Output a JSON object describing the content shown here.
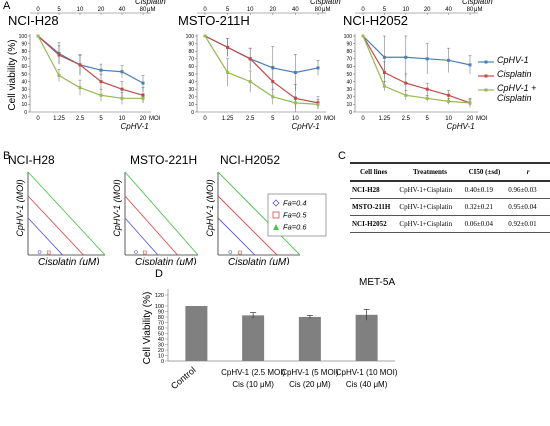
{
  "panelA": {
    "letter": "A",
    "top_ticks": [
      "0",
      "5",
      "10",
      "20",
      "40",
      "80"
    ],
    "top_unit": "μM",
    "top_label": "Cisplatin",
    "bottom_ticks": [
      "0",
      "1.25",
      "2.5",
      "5",
      "10",
      "20"
    ],
    "bottom_unit": "MOI",
    "bottom_label": "CpHV-1",
    "ylabel": "Cell viability (%)",
    "yticks": [
      "0",
      "10",
      "20",
      "30",
      "40",
      "50",
      "60",
      "70",
      "80",
      "90",
      "100"
    ],
    "legend": [
      "CpHV-1",
      "Cisplatin",
      "CpHV-1 + Cisplatin"
    ]
  },
  "panelB": {
    "letter": "B",
    "titles": [
      "NCI-H28",
      "MSTO-221H",
      "NCI-H2052"
    ],
    "ylabel": "CpHV-1 (MOI)",
    "xlabel": "Cisplatin (μM)",
    "legend": [
      "Fa=0.4",
      "Fa=0.5",
      "Fa=0.6"
    ]
  },
  "panelC": {
    "letter": "C",
    "headers": [
      "Cell lines",
      "Treatments",
      "CI50 (±sd)",
      "r"
    ],
    "rows": [
      [
        "NCI-H28",
        "CpHV-1+Cisplatin",
        "0.40±0.19",
        "0.96±0.03"
      ],
      [
        "MSTO-211H",
        "CpHV-1+Cisplatin",
        "0.32±0.21",
        "0.95±0.04"
      ],
      [
        "NCI-H2052",
        "CpHV-1+Cisplatin",
        "0.06±0.04",
        "0.92±0.01"
      ]
    ]
  },
  "panelD": {
    "letter": "D",
    "cat_lines": [
      [
        "Control"
      ],
      [
        "CpHV-1 (2.5 MOI)",
        "Cis (10 μM)"
      ],
      [
        "CpHV-1 (5 MOI)",
        "Cis (20 μM)"
      ],
      [
        "CpHV-1 (10 MOI)",
        "Cis (40 μM)"
      ]
    ]
  },
  "chart_data": [
    {
      "type": "line",
      "title": "NCI-H28",
      "x": [
        "0",
        "1.25",
        "2.5",
        "5",
        "10",
        "20"
      ],
      "ylim": [
        0,
        100
      ],
      "series": [
        {
          "name": "CpHV-1",
          "color": "#4a7ebb",
          "values": [
            100,
            77,
            62,
            55,
            53,
            38
          ],
          "err": [
            0,
            14,
            12,
            8,
            8,
            10
          ]
        },
        {
          "name": "Cisplatin",
          "color": "#be4b48",
          "values": [
            100,
            75,
            62,
            40,
            30,
            22
          ],
          "err": [
            0,
            12,
            14,
            10,
            10,
            10
          ]
        },
        {
          "name": "CpHV-1 + Cisplatin",
          "color": "#98b954",
          "values": [
            100,
            48,
            32,
            22,
            18,
            18
          ],
          "err": [
            0,
            8,
            10,
            8,
            8,
            6
          ]
        }
      ]
    },
    {
      "type": "line",
      "title": "MSTO-211H",
      "x": [
        "0",
        "1.25",
        "2.5",
        "5",
        "10",
        "20"
      ],
      "ylim": [
        0,
        100
      ],
      "series": [
        {
          "name": "CpHV-1",
          "color": "#4a7ebb",
          "values": [
            100,
            85,
            70,
            58,
            52,
            58
          ],
          "err": [
            0,
            12,
            14,
            28,
            24,
            10
          ]
        },
        {
          "name": "Cisplatin",
          "color": "#be4b48",
          "values": [
            100,
            85,
            70,
            40,
            18,
            12
          ],
          "err": [
            0,
            12,
            14,
            20,
            18,
            8
          ]
        },
        {
          "name": "CpHV-1 + Cisplatin",
          "color": "#98b954",
          "values": [
            100,
            52,
            40,
            20,
            12,
            10
          ],
          "err": [
            0,
            18,
            14,
            10,
            8,
            6
          ]
        }
      ]
    },
    {
      "type": "line",
      "title": "NCI-H2052",
      "x": [
        "0",
        "1.25",
        "2.5",
        "5",
        "10",
        "20"
      ],
      "ylim": [
        0,
        100
      ],
      "series": [
        {
          "name": "CpHV-1",
          "color": "#4a7ebb",
          "values": [
            100,
            72,
            72,
            70,
            68,
            62
          ],
          "err": [
            0,
            28,
            28,
            20,
            16,
            12
          ]
        },
        {
          "name": "Cisplatin",
          "color": "#be4b48",
          "values": [
            100,
            52,
            38,
            30,
            22,
            12
          ],
          "err": [
            0,
            14,
            12,
            8,
            6,
            6
          ]
        },
        {
          "name": "CpHV-1 + Cisplatin",
          "color": "#98b954",
          "values": [
            100,
            34,
            22,
            18,
            14,
            12
          ],
          "err": [
            0,
            6,
            6,
            4,
            4,
            4
          ]
        }
      ]
    },
    {
      "type": "bar",
      "title": "MET-5A",
      "ylabel": "Cell Viability (%)",
      "yticks": [
        "0",
        "10",
        "20",
        "30",
        "40",
        "50",
        "60",
        "70",
        "80",
        "90",
        "100",
        "120"
      ],
      "ylim": [
        0,
        120
      ],
      "categories": [
        "Control",
        "CpHV-1 (2.5 MOI) Cis (10 μM)",
        "CpHV-1 (5 MOI) Cis (20 μM)",
        "CpHV-1 (10 MOI) Cis (40 μM)"
      ],
      "values": [
        100,
        83,
        80,
        84
      ],
      "err": [
        0,
        5,
        3,
        10
      ],
      "color": "#808080"
    }
  ]
}
